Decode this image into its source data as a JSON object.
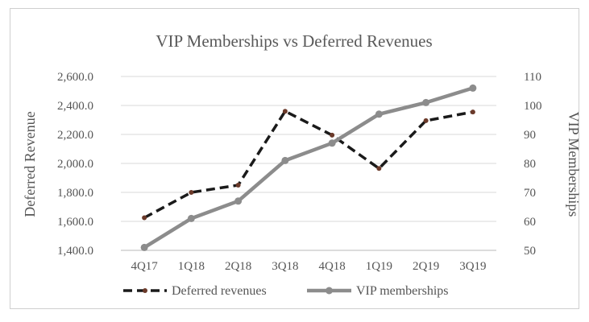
{
  "chart_data": {
    "type": "line",
    "title": "VIP Memberships vs Deferred Revenues",
    "categories": [
      "4Q17",
      "1Q18",
      "2Q18",
      "3Q18",
      "4Q18",
      "1Q19",
      "2Q19",
      "3Q19"
    ],
    "y_left": {
      "label": "Deferred Revenue",
      "range": [
        1400,
        2600
      ],
      "ticks": [
        "1,400.0",
        "1,600.0",
        "1,800.0",
        "2,000.0",
        "2,200.0",
        "2,400.0",
        "2,600.0"
      ]
    },
    "y_right": {
      "label": "VIP Memberships",
      "range": [
        50,
        110
      ],
      "ticks": [
        "50",
        "60",
        "70",
        "80",
        "90",
        "100",
        "110"
      ]
    },
    "grid": true,
    "legend_position": "bottom",
    "series": [
      {
        "name": "Deferred revenues",
        "axis": "left",
        "style": "dashed",
        "color": "#1a1a1a",
        "marker_color": "#6b3a2a",
        "values": [
          1625,
          1800,
          1850,
          2360,
          2195,
          1965,
          2295,
          2355
        ]
      },
      {
        "name": "VIP memberships",
        "axis": "right",
        "style": "solid",
        "color": "#8c8c8c",
        "marker_color": "#8c8c8c",
        "values": [
          51,
          61,
          67,
          81,
          87,
          97,
          101,
          106
        ]
      }
    ]
  }
}
